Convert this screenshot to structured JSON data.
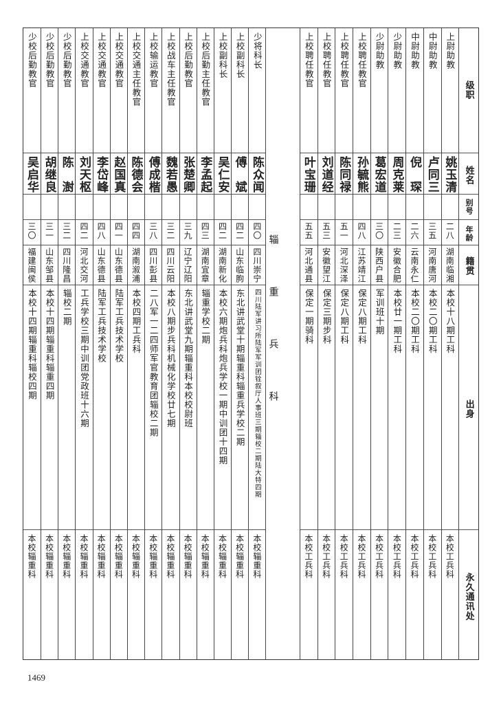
{
  "header": {
    "rank": "级职",
    "name": "姓名",
    "alias": "别号",
    "age": "年龄",
    "native": "籍贯",
    "origin": "出身",
    "address": "永久通讯处"
  },
  "engineering_rows": [
    {
      "rank": "上尉助教",
      "name": "姚玉清",
      "alias": "",
      "age": "二八",
      "native": "湖南临湘",
      "origin": "本校十八期工科",
      "address": "本校工兵科"
    },
    {
      "rank": "中尉助教",
      "name": "卢同三",
      "alias": "",
      "age": "三五",
      "native": "河南唐河",
      "origin": "本校二〇期工科",
      "address": "本校工兵科"
    },
    {
      "rank": "中尉助教",
      "name": "倪　琛",
      "alias": "",
      "age": "二六",
      "native": "云南永仁",
      "origin": "本校二〇期工科",
      "address": "本校工兵科"
    },
    {
      "rank": "少尉助教",
      "name": "周克莱",
      "alias": "",
      "age": "二三",
      "native": "安徽合肥",
      "origin": "本校廿一期工科",
      "address": "本校工兵科"
    },
    {
      "rank": "少尉助教",
      "name": "葛宏道",
      "alias": "",
      "age": "三〇",
      "native": "陕西户县",
      "origin": "军训班十期",
      "address": "本校工兵科"
    },
    {
      "rank": "上校聘任教官",
      "name": "孙毓熊",
      "alias": "",
      "age": "四八",
      "native": "江苏靖江",
      "origin": "保定八期工科",
      "address": "本校工兵科"
    },
    {
      "rank": "上校聘任教官",
      "name": "陈同禄",
      "alias": "",
      "age": "五一",
      "native": "河北深泽",
      "origin": "保定八期工科",
      "address": "本校工兵科"
    },
    {
      "rank": "上校聘任教官",
      "name": "刘道经",
      "alias": "",
      "age": "五三",
      "native": "安徽望江",
      "origin": "保定三期步科",
      "address": "本校工兵科"
    },
    {
      "rank": "上校聘任教官",
      "name": "叶宝珊",
      "alias": "",
      "age": "五五",
      "native": "河北通县",
      "origin": "保定一期骑科",
      "address": "本校工兵科"
    }
  ],
  "section_label": "辎重兵科",
  "transport_rows": [
    {
      "rank": "少将科长",
      "name": "陈众闻",
      "alias": "",
      "age": "四〇",
      "native": "四川崇宁",
      "origin": "四川陆军讲习所陆军军训团铨叙厅人事班三期辎校二期陆大特四期",
      "address": "本校辎重科"
    },
    {
      "rank": "上校副科长",
      "name": "傅　斌",
      "alias": "",
      "age": "四二",
      "native": "山东临朐",
      "origin": "东北讲武堂十期辎重科辎重兵学校二期",
      "address": "本校辎重科"
    },
    {
      "rank": "上校副科长",
      "name": "吴仁安",
      "alias": "",
      "age": "四二",
      "native": "湖南新化",
      "origin": "本校六期炮兵科炮兵学校一期中训团十四期",
      "address": "本校辎重科"
    },
    {
      "rank": "上校后勤主任教官",
      "name": "李孟起",
      "alias": "",
      "age": "四三",
      "native": "湖南宜章",
      "origin": "辎重学校二期",
      "address": "本校辎重科"
    },
    {
      "rank": "上校后勤教官",
      "name": "张楚卿",
      "alias": "",
      "age": "三九",
      "native": "辽宁辽阳",
      "origin": "东北讲武堂九期辎重科本校校尉班",
      "address": "本校辎重科"
    },
    {
      "rank": "上校战车主任教官",
      "name": "魏若愚",
      "alias": "",
      "age": "三二",
      "native": "四川云阳",
      "origin": "本校八期步兵科机械化学校廿七期",
      "address": "本校辎重科"
    },
    {
      "rank": "上校输运教官",
      "name": "傅成楷",
      "alias": "",
      "age": "三八",
      "native": "四川彭县",
      "origin": "二八军一二四师军官教育团辎校二期",
      "address": "本校辎重科"
    },
    {
      "rank": "上校交通主任教官",
      "name": "陈德会",
      "alias": "",
      "age": "四四",
      "native": "湖南溆浦",
      "origin": "本校四期工兵科",
      "address": "本校辎重科"
    },
    {
      "rank": "上校交通教官",
      "name": "赵国真",
      "alias": "",
      "age": "四一",
      "native": "山东德县",
      "origin": "陆军工兵技术学校",
      "address": "本校辎重科"
    },
    {
      "rank": "上校交通教官",
      "name": "李岱峰",
      "alias": "",
      "age": "四八",
      "native": "山东德县",
      "origin": "陆军工兵技术学校",
      "address": "本校辎重科"
    },
    {
      "rank": "上校交通教官",
      "name": "刘天枢",
      "alias": "",
      "age": "四二",
      "native": "河北交河",
      "origin": "工兵学校三期中训团党政班十六期",
      "address": "本校辎重科"
    },
    {
      "rank": "少校后勤教官",
      "name": "陈　澍",
      "alias": "",
      "age": "三二",
      "native": "四川隆昌",
      "origin": "辎校二期",
      "address": "本校辎重科"
    },
    {
      "rank": "少校后勤教官",
      "name": "胡继良",
      "alias": "",
      "age": "三一",
      "native": "山东邹县",
      "origin": "本校十四期辎重科辎重四期",
      "address": "本校辎重科"
    },
    {
      "rank": "少校后勤教官",
      "name": "吴启华",
      "alias": "",
      "age": "三〇",
      "native": "福建闽侯",
      "origin": "本校十四期辎重科辎校四期",
      "address": "本校辎重科"
    }
  ],
  "page_number": "1469"
}
